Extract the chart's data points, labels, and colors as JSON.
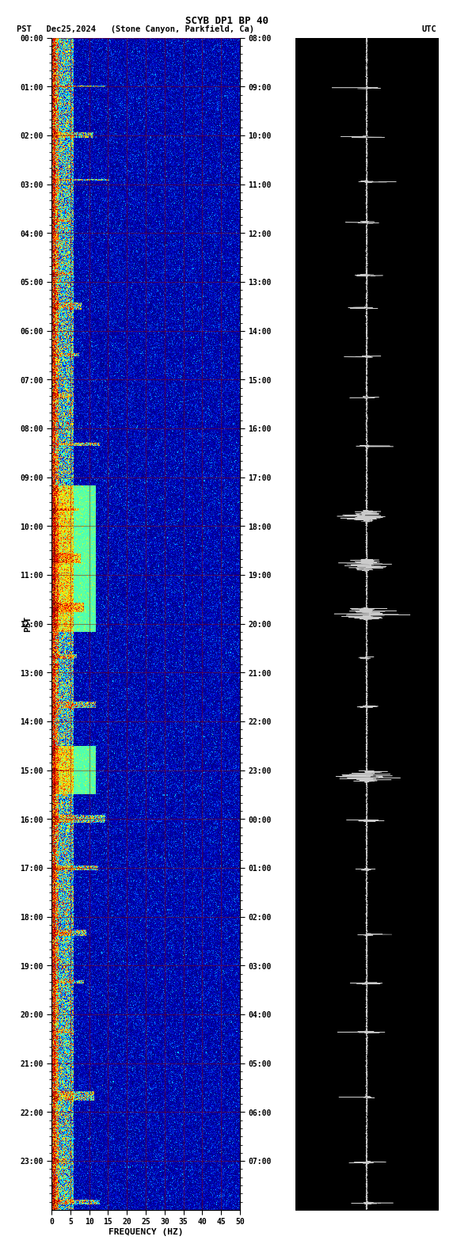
{
  "title_line1": "SCYB DP1 BP 40",
  "title_line2_left": "PST   Dec25,2024   (Stone Canyon, Parkfield, Ca)",
  "title_line2_right": "UTC",
  "xlabel": "FREQUENCY (HZ)",
  "ylabel_left": "PST",
  "ylabel_right": "UTC",
  "freq_min": 0,
  "freq_max": 50,
  "freq_ticks": [
    0,
    5,
    10,
    15,
    20,
    25,
    30,
    35,
    40,
    45,
    50
  ],
  "time_hours_pst": [
    "00:00",
    "01:00",
    "02:00",
    "03:00",
    "04:00",
    "05:00",
    "06:00",
    "07:00",
    "08:00",
    "09:00",
    "10:00",
    "11:00",
    "12:00",
    "13:00",
    "14:00",
    "15:00",
    "16:00",
    "17:00",
    "18:00",
    "19:00",
    "20:00",
    "21:00",
    "22:00",
    "23:00"
  ],
  "time_hours_utc": [
    "08:00",
    "09:00",
    "10:00",
    "11:00",
    "12:00",
    "13:00",
    "14:00",
    "15:00",
    "16:00",
    "17:00",
    "18:00",
    "19:00",
    "20:00",
    "21:00",
    "22:00",
    "23:00",
    "00:00",
    "01:00",
    "02:00",
    "03:00",
    "04:00",
    "05:00",
    "06:00",
    "07:00"
  ],
  "bg_color": "white",
  "spectrogram_bg": "#000080",
  "seismogram_bg": "black",
  "grid_color": "#8B0000",
  "seed": 42
}
